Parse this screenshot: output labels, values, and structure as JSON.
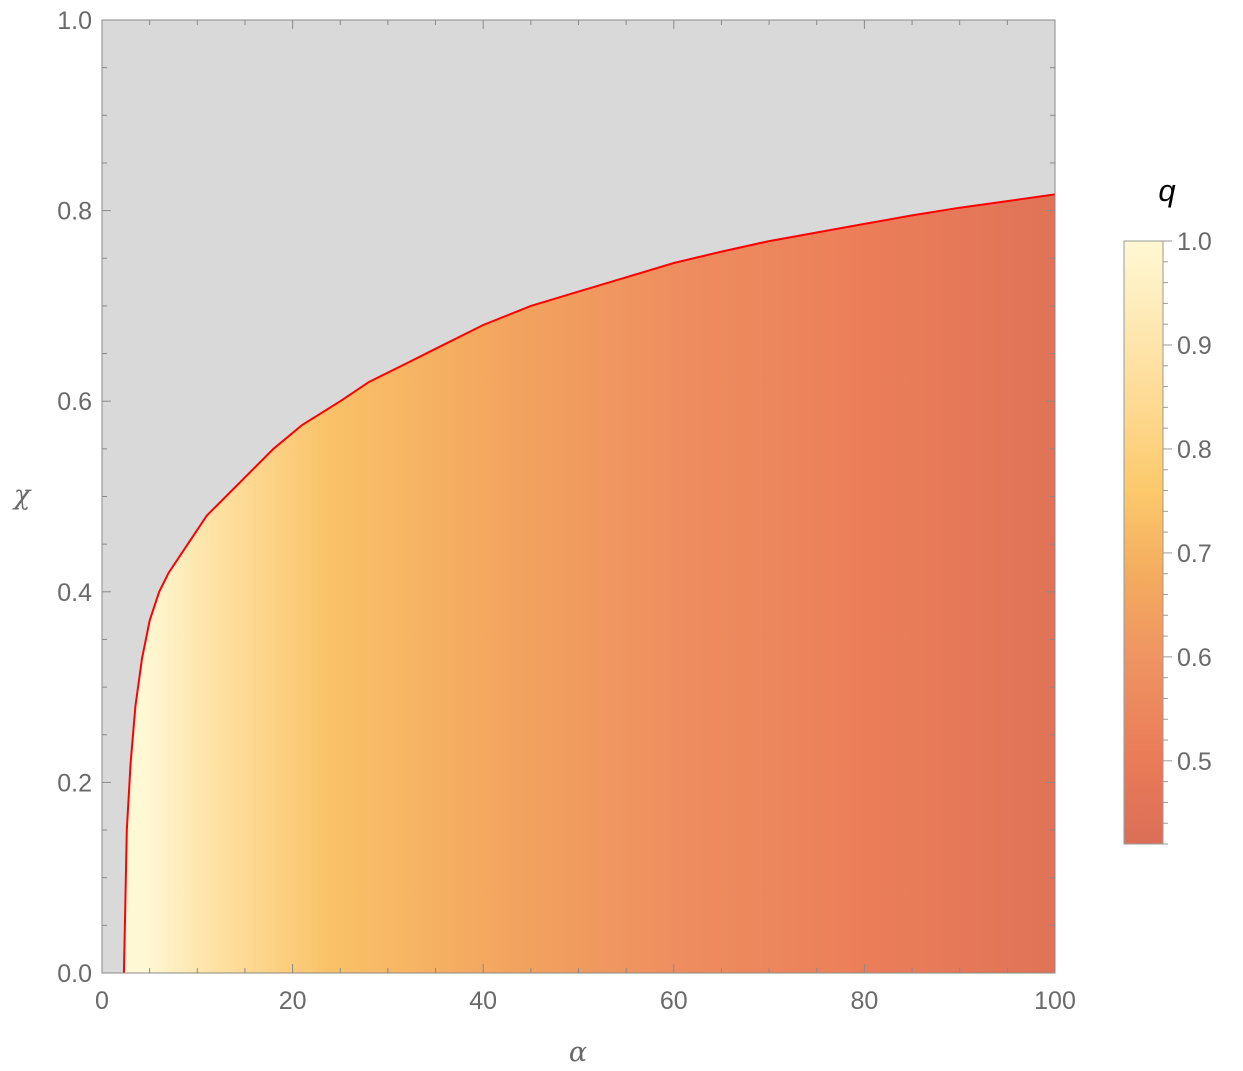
{
  "chart_data": {
    "type": "area",
    "xlabel": "α",
    "ylabel": "χ",
    "xlim": [
      0,
      100
    ],
    "ylim": [
      0,
      1
    ],
    "x_ticks": [
      "0",
      "20",
      "40",
      "60",
      "80",
      "100"
    ],
    "y_ticks": [
      "0.0",
      "0.2",
      "0.4",
      "0.6",
      "0.8",
      "1.0"
    ],
    "grid": false,
    "frame_ticks": "all sides",
    "background_color": "#d9d9d9",
    "boundary_color": "#ff0000",
    "boundary": {
      "x": [
        2.3,
        2.4,
        2.6,
        3.0,
        3.5,
        4.2,
        5.0,
        6.0,
        7.0,
        9.0,
        11.0,
        13.0,
        15.0,
        18.0,
        21.0,
        25.0,
        28.0,
        32.0,
        35.0,
        40.0,
        45.0,
        50.0,
        55.0,
        60.0,
        65.0,
        70.0,
        75.0,
        80.0,
        85.0,
        90.0,
        95.0,
        100.0
      ],
      "y": [
        0.0,
        0.05,
        0.15,
        0.22,
        0.28,
        0.33,
        0.37,
        0.4,
        0.42,
        0.45,
        0.48,
        0.5,
        0.52,
        0.55,
        0.575,
        0.6,
        0.62,
        0.64,
        0.655,
        0.68,
        0.7,
        0.715,
        0.73,
        0.745,
        0.757,
        0.768,
        0.777,
        0.786,
        0.795,
        0.803,
        0.81,
        0.817
      ]
    },
    "fill_gradient": {
      "variable": "q",
      "along_x": [
        0,
        2.3,
        10,
        22,
        40,
        60,
        80,
        100
      ],
      "q": [
        1.0,
        1.0,
        0.88,
        0.74,
        0.66,
        0.57,
        0.51,
        0.45
      ]
    },
    "colorbar": {
      "title": "q",
      "range": [
        0.42,
        1.0
      ],
      "tick_labels": [
        "0.5",
        "0.6",
        "0.7",
        "0.8",
        "0.9",
        "1.0"
      ],
      "stops": [
        {
          "q": 0.42,
          "color": "#da6e57"
        },
        {
          "q": 0.5,
          "color": "#ea7b58"
        },
        {
          "q": 0.6,
          "color": "#ef9462"
        },
        {
          "q": 0.68,
          "color": "#f4ac5e"
        },
        {
          "q": 0.76,
          "color": "#fcc96b"
        },
        {
          "q": 0.86,
          "color": "#fedd9a"
        },
        {
          "q": 1.0,
          "color": "#fff8d4"
        }
      ]
    }
  }
}
